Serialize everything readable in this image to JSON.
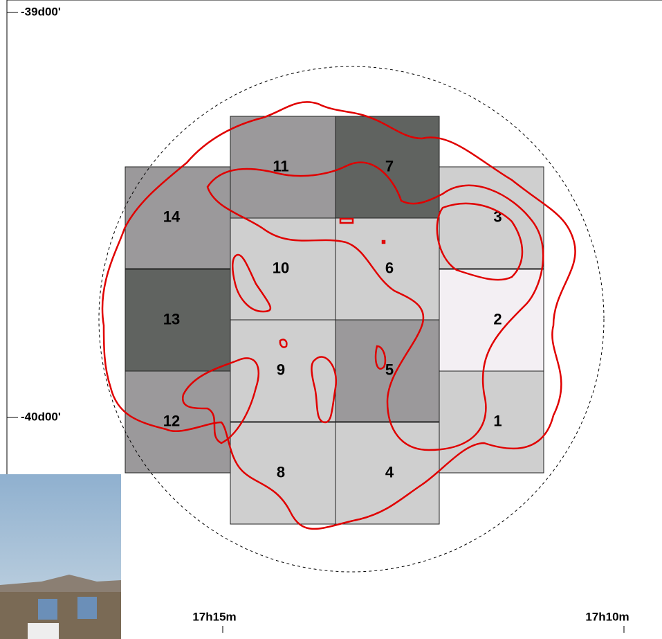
{
  "axes": {
    "dec_labels": [
      "-39d00'",
      "-40d00'"
    ],
    "ra_labels": [
      "17h15m",
      "17h10m"
    ]
  },
  "tiles": [
    {
      "label": "1",
      "color": "#cfcfcf"
    },
    {
      "label": "2",
      "color": "#f3eff3"
    },
    {
      "label": "3",
      "color": "#cfcfcf"
    },
    {
      "label": "4",
      "color": "#cfcfcf"
    },
    {
      "label": "5",
      "color": "#9b999b"
    },
    {
      "label": "6",
      "color": "#cfcfcf"
    },
    {
      "label": "7",
      "color": "#606360"
    },
    {
      "label": "8",
      "color": "#cfcfcf"
    },
    {
      "label": "9",
      "color": "#cfcfcf"
    },
    {
      "label": "10",
      "color": "#cfcfcf"
    },
    {
      "label": "11",
      "color": "#9b999b"
    },
    {
      "label": "12",
      "color": "#9b999b"
    },
    {
      "label": "13",
      "color": "#606360"
    },
    {
      "label": "14",
      "color": "#9b999b"
    }
  ]
}
